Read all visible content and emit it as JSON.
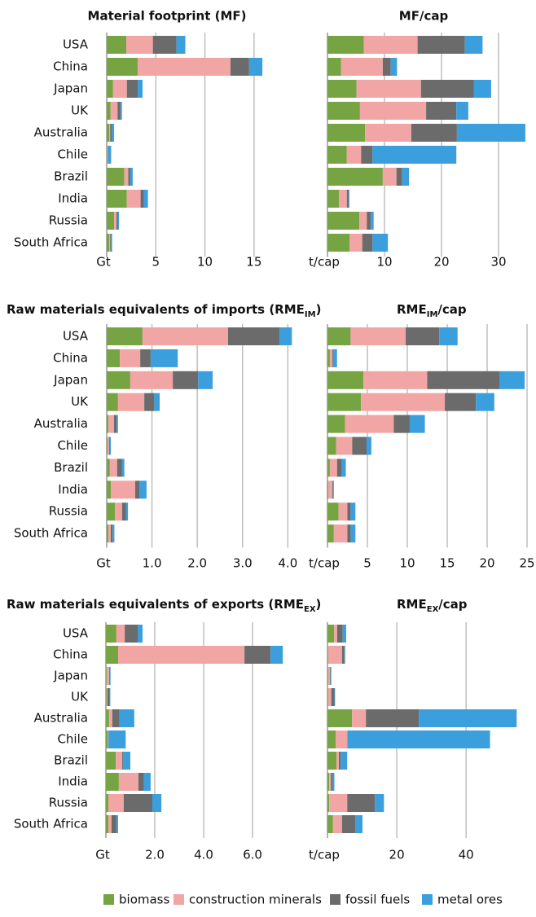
{
  "legend": [
    {
      "name": "biomass",
      "color": "#77a443"
    },
    {
      "name": "construction minerals",
      "color": "#f2a5a5"
    },
    {
      "name": "fossil fuels",
      "color": "#6b6b6b"
    },
    {
      "name": "metal ores",
      "color": "#3b9fdd"
    }
  ],
  "chart_data": [
    {
      "type": "bar",
      "orientation": "horizontal",
      "title": "Material footprint (MF)",
      "categories": [
        "USA",
        "China",
        "Japan",
        "UK",
        "Australia",
        "Chile",
        "Brazil",
        "India",
        "Russia",
        "South Africa"
      ],
      "series": [
        {
          "values": [
            2.0,
            3.15,
            0.65,
            0.4,
            0.25,
            0.05,
            1.8,
            2.05,
            0.75,
            0.25
          ]
        },
        {
          "values": [
            2.7,
            9.45,
            1.4,
            0.7,
            0.1,
            0.05,
            0.4,
            1.4,
            0.25,
            0.1
          ]
        },
        {
          "values": [
            2.4,
            1.9,
            1.1,
            0.3,
            0.15,
            0.05,
            0.2,
            0.35,
            0.15,
            0.1
          ]
        },
        {
          "values": [
            0.9,
            1.35,
            0.5,
            0.15,
            0.25,
            0.3,
            0.25,
            0.4,
            0.1,
            0.1
          ]
        }
      ],
      "xlim": [
        0,
        17.5
      ],
      "xticks": [
        {
          "value": 0,
          "label": "Gt"
        },
        5,
        10,
        15
      ]
    },
    {
      "type": "bar",
      "orientation": "horizontal",
      "title": "MF/cap",
      "categories": [
        "USA",
        "China",
        "Japan",
        "UK",
        "Australia",
        "Chile",
        "Brazil",
        "India",
        "Russia",
        "South Africa"
      ],
      "series": [
        {
          "values": [
            6.4,
            2.4,
            5.1,
            5.7,
            6.6,
            3.4,
            9.7,
            2.0,
            5.6,
            3.9
          ]
        },
        {
          "values": [
            9.4,
            7.3,
            11.3,
            11.6,
            8.1,
            2.5,
            2.4,
            1.4,
            1.3,
            2.2
          ]
        },
        {
          "values": [
            8.3,
            1.4,
            9.3,
            5.3,
            8.0,
            2.0,
            1.0,
            0.3,
            0.7,
            1.8
          ]
        },
        {
          "values": [
            3.1,
            1.1,
            3.0,
            2.1,
            12.0,
            14.7,
            1.2,
            0.15,
            0.5,
            2.7
          ]
        }
      ],
      "xlim": [
        0,
        35
      ],
      "xticks": [
        {
          "value": 0,
          "label": "t/cap"
        },
        10,
        20,
        30
      ]
    },
    {
      "type": "bar",
      "orientation": "horizontal",
      "title": [
        "Raw materials equivalents of imports (RME",
        "IM",
        ")"
      ],
      "categories": [
        "USA",
        "China",
        "Japan",
        "UK",
        "Australia",
        "Chile",
        "Brazil",
        "India",
        "Russia",
        "South Africa"
      ],
      "series": [
        {
          "values": [
            0.79,
            0.29,
            0.52,
            0.25,
            0.04,
            0.02,
            0.07,
            0.09,
            0.18,
            0.04
          ]
        },
        {
          "values": [
            1.89,
            0.45,
            0.94,
            0.58,
            0.12,
            0.03,
            0.16,
            0.54,
            0.16,
            0.05
          ]
        },
        {
          "values": [
            1.14,
            0.23,
            0.56,
            0.22,
            0.06,
            0.02,
            0.11,
            0.09,
            0.09,
            0.04
          ]
        },
        {
          "values": [
            0.27,
            0.6,
            0.32,
            0.12,
            0.03,
            0.02,
            0.05,
            0.16,
            0.04,
            0.04
          ]
        }
      ],
      "xlim": [
        0,
        4.3
      ],
      "xticks": [
        {
          "value": 0,
          "label": "Gt"
        },
        {
          "value": 1,
          "label": "1.0"
        },
        {
          "value": 2,
          "label": "2.0"
        },
        {
          "value": 3,
          "label": "3.0"
        },
        {
          "value": 4,
          "label": "4.0"
        }
      ]
    },
    {
      "type": "bar",
      "orientation": "horizontal",
      "title": [
        "RME",
        "IM",
        "/cap"
      ],
      "categories": [
        "USA",
        "China",
        "Japan",
        "UK",
        "Australia",
        "Chile",
        "Brazil",
        "India",
        "Russia",
        "South Africa"
      ],
      "series": [
        {
          "values": [
            2.9,
            0.3,
            4.5,
            4.2,
            2.2,
            1.1,
            0.3,
            0.1,
            1.4,
            0.8
          ]
        },
        {
          "values": [
            6.9,
            0.3,
            8.0,
            10.5,
            6.1,
            2.0,
            0.9,
            0.5,
            1.1,
            1.7
          ]
        },
        {
          "values": [
            4.2,
            0.1,
            9.1,
            3.9,
            2.0,
            1.8,
            0.6,
            0.1,
            0.4,
            0.4
          ]
        },
        {
          "values": [
            2.3,
            0.5,
            3.1,
            2.3,
            1.9,
            0.6,
            0.5,
            0.1,
            0.6,
            0.6
          ]
        }
      ],
      "xlim": [
        0,
        25
      ],
      "xticks": [
        {
          "value": 0,
          "label": "t/cap"
        },
        5,
        10,
        15,
        20,
        25
      ]
    },
    {
      "type": "bar",
      "orientation": "horizontal",
      "title": [
        "Raw materials equivalents of exports (RME",
        "EX",
        ")"
      ],
      "categories": [
        "USA",
        "China",
        "Japan",
        "UK",
        "Australia",
        "Chile",
        "Brazil",
        "India",
        "Russia",
        "South Africa"
      ],
      "series": [
        {
          "values": [
            0.43,
            0.5,
            0.03,
            0.03,
            0.13,
            0.07,
            0.4,
            0.53,
            0.1,
            0.1
          ]
        },
        {
          "values": [
            0.34,
            5.17,
            0.1,
            0.03,
            0.13,
            0.02,
            0.27,
            0.8,
            0.63,
            0.13
          ]
        },
        {
          "values": [
            0.53,
            1.07,
            0.03,
            0.1,
            0.3,
            0.02,
            0.03,
            0.23,
            1.17,
            0.2
          ]
        },
        {
          "values": [
            0.2,
            0.5,
            0.03,
            0.02,
            0.6,
            0.7,
            0.3,
            0.27,
            0.37,
            0.07
          ]
        }
      ],
      "xlim": [
        0,
        7.4
      ],
      "xticks": [
        {
          "value": 0,
          "label": "Gt"
        },
        {
          "value": 2,
          "label": "2.0"
        },
        {
          "value": 4,
          "label": "4.0"
        },
        {
          "value": 6,
          "label": "6.0"
        }
      ]
    },
    {
      "type": "bar",
      "orientation": "horizontal",
      "title": [
        "RME",
        "EX",
        "/cap"
      ],
      "categories": [
        "USA",
        "China",
        "Japan",
        "UK",
        "Australia",
        "Chile",
        "Brazil",
        "India",
        "Russia",
        "South Africa"
      ],
      "series": [
        {
          "values": [
            1.9,
            0.2,
            0.2,
            0.2,
            7.1,
            2.4,
            2.6,
            0.5,
            0.5,
            1.6
          ]
        },
        {
          "values": [
            0.9,
            4.0,
            0.5,
            0.9,
            4.0,
            3.3,
            0.7,
            0.5,
            5.2,
            2.6
          ]
        },
        {
          "values": [
            1.6,
            0.7,
            0.2,
            0.9,
            15.3,
            0.1,
            0.5,
            0.5,
            8.0,
            3.8
          ]
        },
        {
          "values": [
            1.0,
            0.2,
            0.2,
            0.2,
            28.2,
            41.1,
            1.9,
            0.5,
            2.6,
            2.1
          ]
        }
      ],
      "xlim": [
        0,
        55
      ],
      "xticks": [
        {
          "value": 0,
          "label": "t/cap"
        },
        20,
        40
      ]
    }
  ]
}
